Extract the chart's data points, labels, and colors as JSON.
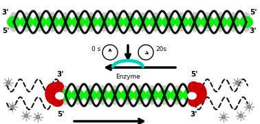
{
  "fig_width": 3.78,
  "fig_height": 1.8,
  "dpi": 100,
  "bg_color": "#ffffff",
  "helix_color": "#111111",
  "fill_color": "#c8c8c8",
  "green_color": "#00ee00",
  "red_color": "#cc0000",
  "gray_color": "#909090",
  "cyan_color": "#00d0c0",
  "arrow_color": "#000000",
  "time_label_0s": "0 s",
  "time_label_20s": "20s",
  "enzyme_label": "Enzyme",
  "label_fontsize": 6.5,
  "strand_label_fontsize": 7.5
}
